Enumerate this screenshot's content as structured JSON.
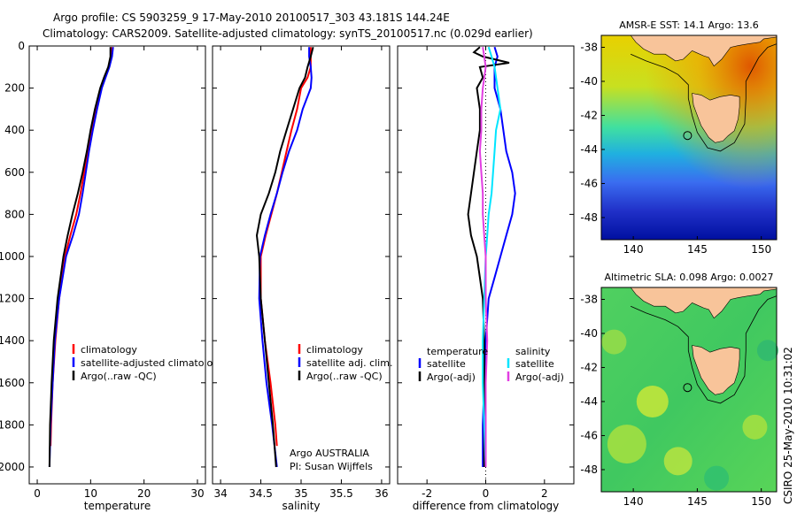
{
  "header": {
    "line1": "Argo profile: CS 5903259_9 17-May-2010 20100517_303 43.181S 144.24E",
    "line2": "Climatology: CARS2009. Satellite-adjusted climatology: synTS_20100517.nc (0.029d earlier)"
  },
  "side_label": "CSIRO 25-May-2010 10:31:02",
  "colors": {
    "black": "#000000",
    "red": "#ff0000",
    "blue": "#0000ff",
    "cyan": "#00e5ff",
    "magenta": "#e23ee2",
    "land": "#f8c49a"
  },
  "chart_data": [
    {
      "type": "line",
      "panel": "temperature",
      "xlabel": "temperature",
      "ylabel": "",
      "xlim": [
        -1.5,
        31.5
      ],
      "ylim": [
        2080,
        0
      ],
      "yreversed": true,
      "xticks": [
        0,
        10,
        20,
        30
      ],
      "yticks": [
        0,
        200,
        400,
        600,
        800,
        1000,
        1200,
        1400,
        1600,
        1800,
        2000
      ],
      "legend": {
        "placement": "lower-right",
        "entries": [
          "climatology",
          "satellite-adjusted climatology",
          "Argo(..raw -QC)"
        ]
      },
      "series": [
        {
          "name": "climatology",
          "color": "#ff0000",
          "y": [
            5,
            50,
            100,
            150,
            200,
            300,
            400,
            500,
            600,
            700,
            800,
            900,
            1000,
            1200,
            1400,
            1600,
            1800,
            1900
          ],
          "x": [
            13.9,
            13.8,
            13.4,
            12.7,
            12.0,
            11.0,
            10.2,
            9.5,
            8.8,
            8.1,
            7.3,
            6.2,
            5.2,
            4.1,
            3.4,
            2.9,
            2.6,
            2.5
          ]
        },
        {
          "name": "satellite-adjusted climatology",
          "color": "#0000ff",
          "y": [
            5,
            50,
            100,
            150,
            200,
            300,
            400,
            500,
            600,
            700,
            800,
            900,
            1000,
            1200,
            1400,
            1600,
            1800,
            2000
          ],
          "x": [
            14.2,
            14.0,
            13.5,
            12.8,
            12.1,
            11.2,
            10.4,
            9.7,
            9.1,
            8.5,
            7.8,
            6.7,
            5.4,
            4.1,
            3.3,
            2.9,
            2.5,
            2.3
          ]
        },
        {
          "name": "Argo(..raw -QC)",
          "color": "#000000",
          "y": [
            5,
            50,
            100,
            150,
            200,
            300,
            400,
            500,
            600,
            700,
            800,
            900,
            1000,
            1200,
            1400,
            1600,
            1800,
            2000
          ],
          "x": [
            13.7,
            13.7,
            13.3,
            12.5,
            11.8,
            10.8,
            10.0,
            9.3,
            8.5,
            7.6,
            6.6,
            5.7,
            4.9,
            3.8,
            3.1,
            2.7,
            2.4,
            2.3
          ]
        }
      ]
    },
    {
      "type": "line",
      "panel": "salinity",
      "xlabel": "salinity",
      "ylabel": "",
      "xlim": [
        33.9,
        36.1
      ],
      "ylim": [
        2080,
        0
      ],
      "yreversed": true,
      "xticks": [
        34,
        34.5,
        35,
        35.5,
        36
      ],
      "annotation": [
        "Argo AUSTRALIA",
        "PI: Susan Wijffels"
      ],
      "legend": {
        "placement": "lower-right",
        "entries": [
          "climatology",
          "satellite adj. clim.",
          "Argo(..raw -QC)"
        ]
      },
      "series": [
        {
          "name": "climatology",
          "color": "#ff0000",
          "y": [
            5,
            50,
            100,
            150,
            200,
            300,
            400,
            500,
            600,
            700,
            800,
            900,
            1000,
            1200,
            1400,
            1600,
            1800,
            1900
          ],
          "x": [
            35.12,
            35.12,
            35.12,
            35.08,
            35.0,
            34.95,
            34.88,
            34.82,
            34.76,
            34.7,
            34.63,
            34.56,
            34.5,
            34.5,
            34.55,
            34.62,
            34.68,
            34.7
          ]
        },
        {
          "name": "satellite adj. clim.",
          "color": "#0000ff",
          "y": [
            5,
            50,
            100,
            150,
            200,
            300,
            400,
            500,
            600,
            700,
            800,
            900,
            1000,
            1200,
            1400,
            1600,
            1800,
            2000
          ],
          "x": [
            35.1,
            35.1,
            35.12,
            35.13,
            35.12,
            35.02,
            34.95,
            34.85,
            34.77,
            34.7,
            34.62,
            34.55,
            34.49,
            34.48,
            34.52,
            34.57,
            34.64,
            34.7
          ]
        },
        {
          "name": "Argo(..raw -QC)",
          "color": "#000000",
          "y": [
            5,
            50,
            100,
            150,
            200,
            300,
            400,
            500,
            600,
            700,
            800,
            900,
            1000,
            1200,
            1400,
            1600,
            1800,
            2000
          ],
          "x": [
            35.15,
            35.12,
            35.08,
            35.05,
            34.98,
            34.9,
            34.82,
            34.74,
            34.68,
            34.6,
            34.5,
            34.45,
            34.48,
            34.5,
            34.55,
            34.6,
            34.65,
            34.69
          ]
        }
      ]
    },
    {
      "type": "line",
      "panel": "difference",
      "xlabel": "difference from climatology",
      "ylabel": "",
      "xlim": [
        -3,
        3
      ],
      "ylim": [
        2080,
        0
      ],
      "yreversed": true,
      "xticks": [
        -2,
        0,
        2
      ],
      "legend": {
        "placement": "lower-center",
        "headers": [
          "temperature",
          "salinity"
        ],
        "entries": [
          "satellite",
          "Argo(-adj)",
          "satellite",
          "Argo(-adj)"
        ]
      },
      "series": [
        {
          "name": "temperature satellite",
          "color": "#0000ff",
          "y": [
            5,
            50,
            100,
            200,
            300,
            400,
            500,
            600,
            700,
            800,
            900,
            1000,
            1100,
            1200,
            1400,
            1600,
            1800,
            2000
          ],
          "x": [
            0.3,
            0.4,
            0.3,
            0.3,
            0.5,
            0.6,
            0.7,
            0.9,
            1.0,
            0.9,
            0.7,
            0.5,
            0.3,
            0.1,
            0.0,
            -0.05,
            -0.1,
            -0.1
          ]
        },
        {
          "name": "temperature Argo(-adj)",
          "color": "#000000",
          "y": [
            5,
            30,
            50,
            80,
            100,
            150,
            200,
            300,
            400,
            500,
            600,
            700,
            800,
            900,
            1000,
            1100,
            1200,
            1400,
            1600,
            1800,
            2000
          ],
          "x": [
            -0.2,
            -0.4,
            -0.1,
            0.8,
            -0.2,
            -0.1,
            -0.3,
            -0.2,
            -0.2,
            -0.3,
            -0.4,
            -0.5,
            -0.6,
            -0.5,
            -0.3,
            -0.2,
            -0.1,
            -0.05,
            -0.05,
            -0.05,
            -0.05
          ]
        },
        {
          "name": "salinity satellite",
          "color": "#00e5ff",
          "y": [
            5,
            50,
            100,
            200,
            300,
            400,
            500,
            600,
            700,
            800,
            900,
            1000,
            1200,
            1400,
            1600,
            1800,
            2000
          ],
          "x": [
            0.1,
            0.2,
            0.3,
            0.4,
            0.5,
            0.35,
            0.3,
            0.25,
            0.2,
            0.1,
            0.05,
            0.0,
            -0.05,
            -0.1,
            -0.1,
            -0.05,
            0.0
          ]
        },
        {
          "name": "salinity Argo(-adj)",
          "color": "#e23ee2",
          "y": [
            5,
            50,
            100,
            200,
            300,
            400,
            500,
            600,
            700,
            800,
            900,
            1000,
            1200,
            1400,
            1600,
            1800,
            2000
          ],
          "x": [
            -0.1,
            -0.05,
            0.0,
            -0.1,
            -0.15,
            -0.15,
            -0.2,
            -0.15,
            -0.1,
            -0.1,
            -0.05,
            0.0,
            0.0,
            0.05,
            0.0,
            0.0,
            0.0
          ]
        }
      ]
    },
    {
      "type": "heatmap",
      "panel": "sst-map",
      "title": "AMSR-E SST: 14.1  Argo: 13.6",
      "xlim": [
        137.5,
        151.2
      ],
      "ylim": [
        -49.3,
        -37.3
      ],
      "xticks": [
        140,
        145,
        150
      ],
      "yticks": [
        -38,
        -40,
        -42,
        -44,
        -46,
        -48
      ],
      "float_position": {
        "lon": 144.24,
        "lat": -43.181
      }
    },
    {
      "type": "heatmap",
      "panel": "sla-map",
      "title": "Altimetric SLA: 0.098  Argo: 0.0027",
      "xlim": [
        137.5,
        151.2
      ],
      "ylim": [
        -49.3,
        -37.3
      ],
      "xticks": [
        140,
        145,
        150
      ],
      "yticks": [
        -38,
        -40,
        -42,
        -44,
        -46,
        -48
      ],
      "float_position": {
        "lon": 144.24,
        "lat": -43.181
      }
    }
  ]
}
